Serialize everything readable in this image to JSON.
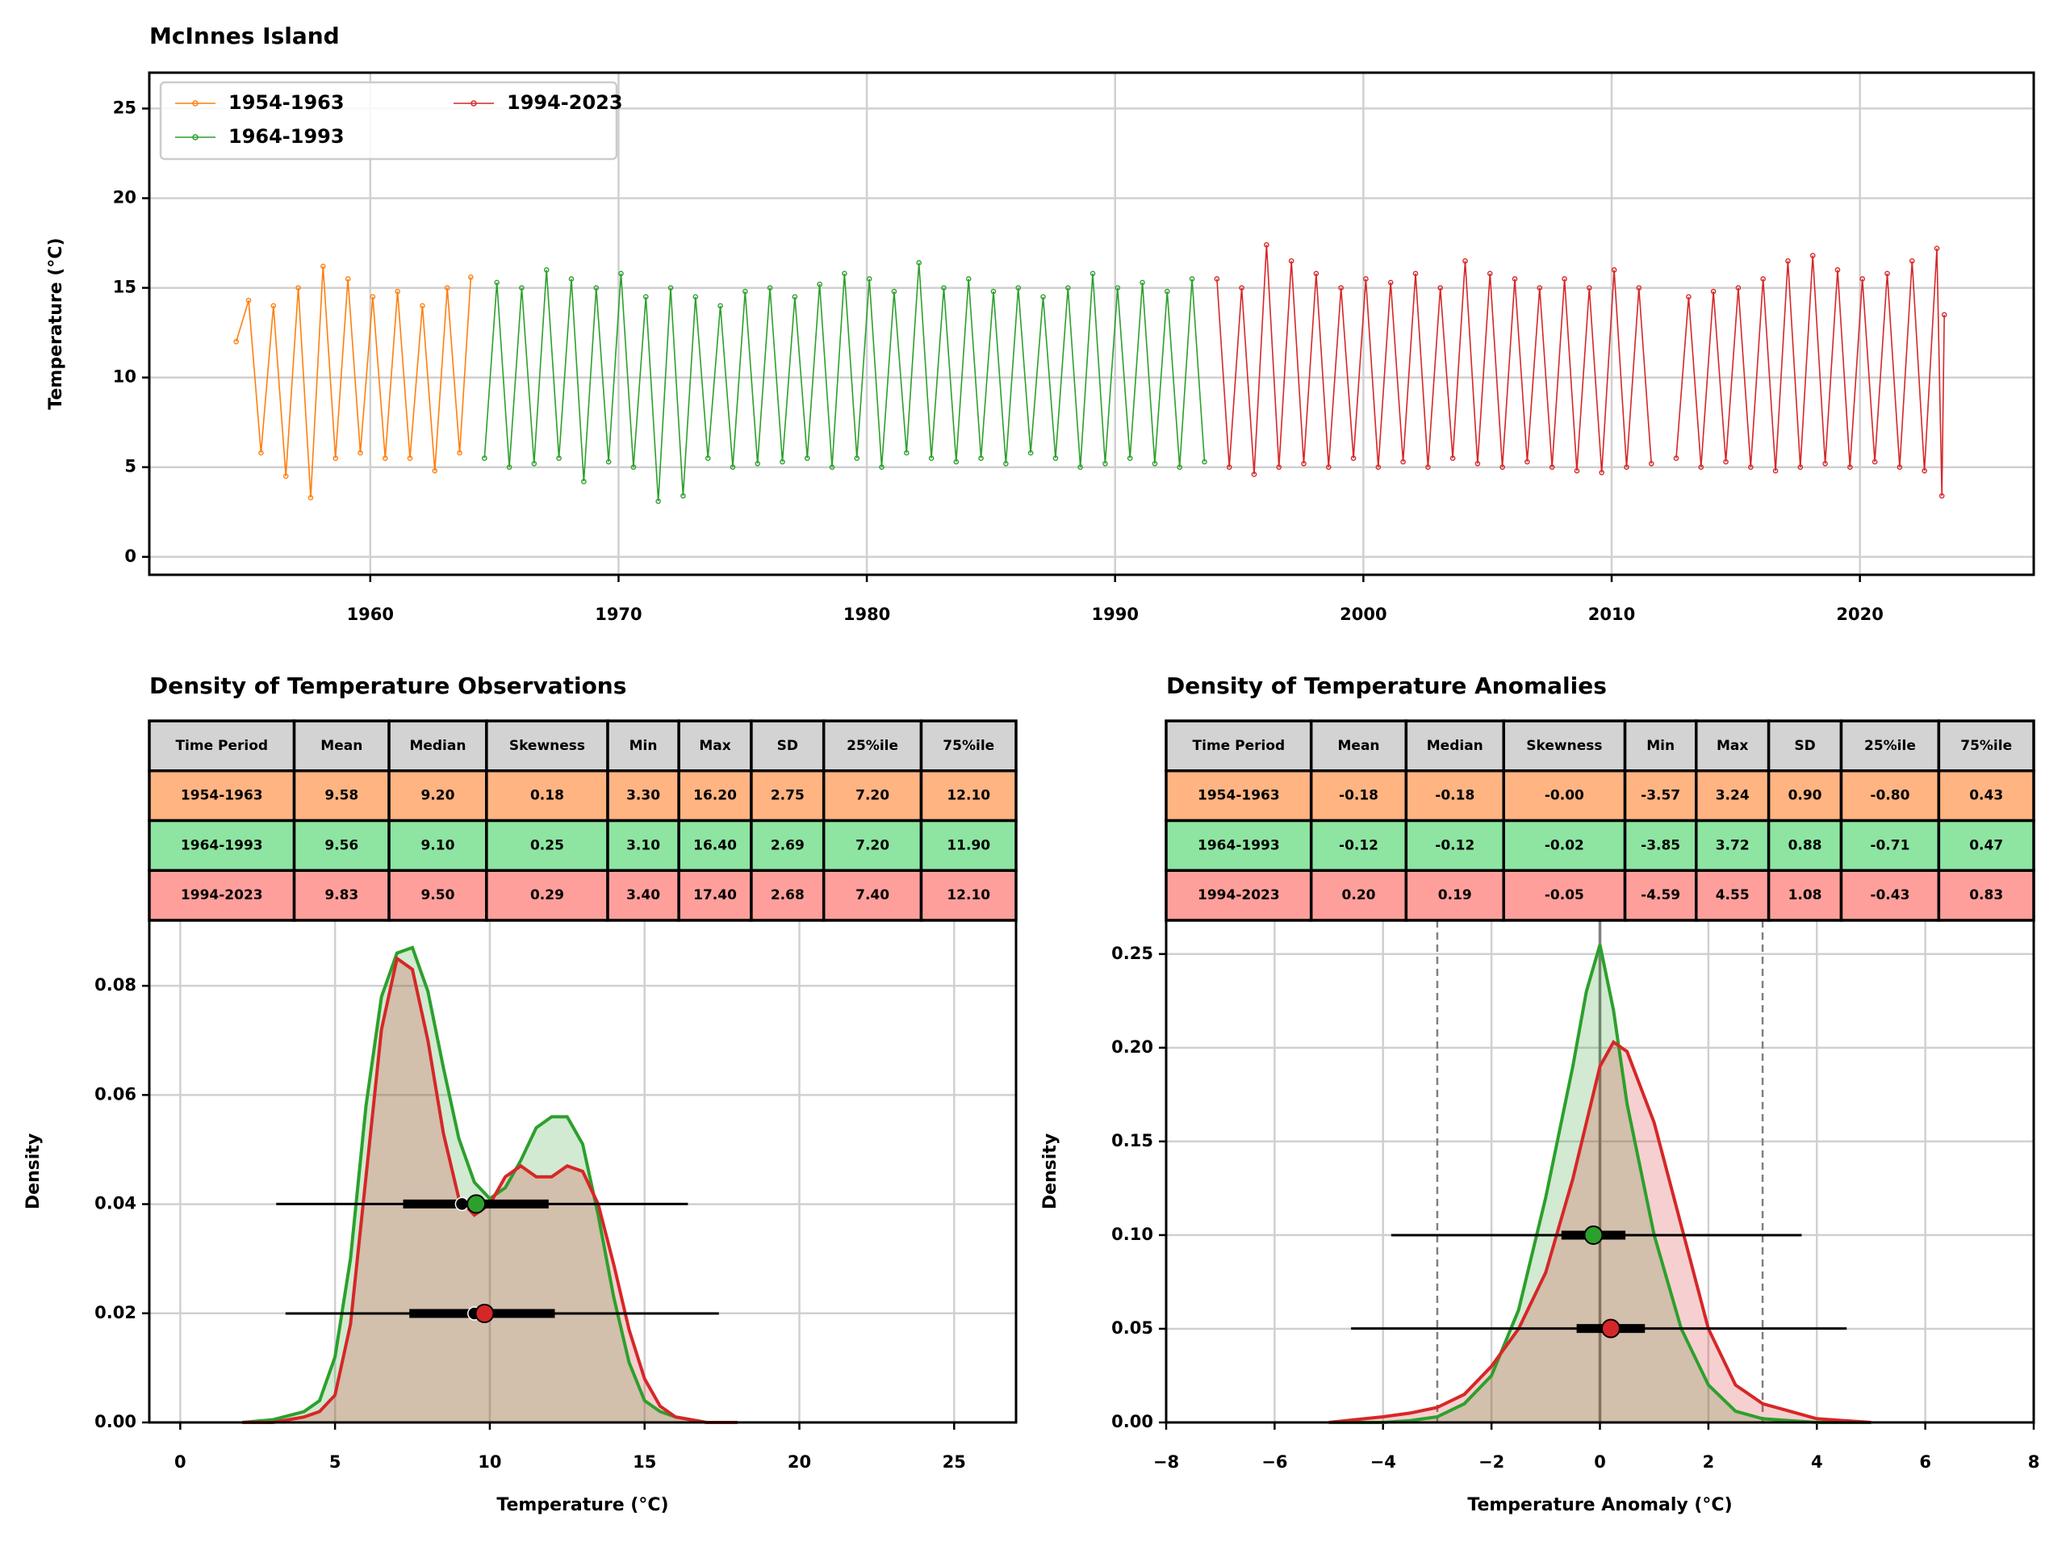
{
  "chart_data": [
    {
      "type": "line",
      "title": "McInnes Island",
      "ylabel": "Temperature (°C)",
      "xlim": [
        1951.1,
        2027
      ],
      "xticks": [
        1960,
        1970,
        1980,
        1990,
        2000,
        2010,
        2020
      ],
      "ylim": [
        -1,
        27
      ],
      "yticks": [
        0,
        5,
        10,
        15,
        20,
        25
      ],
      "grid": true,
      "legend": "upper left",
      "legend_columns": 2,
      "series": [
        {
          "name": "1954-1963",
          "color": "#ff7f0e",
          "x": [
            1954.6,
            1955.1,
            1955.6,
            1956.1,
            1956.6,
            1957.1,
            1957.6,
            1958.1,
            1958.6,
            1959.1,
            1959.6,
            1960.1,
            1960.6,
            1961.1,
            1961.6,
            1962.1,
            1962.6,
            1963.1,
            1963.6,
            1964.05
          ],
          "values": [
            12.0,
            14.3,
            5.8,
            14.0,
            4.5,
            15.0,
            3.3,
            16.2,
            5.5,
            15.5,
            5.8,
            14.5,
            5.5,
            14.8,
            5.5,
            14.0,
            4.8,
            15.0,
            5.8,
            15.6
          ]
        },
        {
          "name": "1964-1993",
          "color": "#2ca02c",
          "x": [
            1964.6,
            1965.1,
            1965.6,
            1966.1,
            1966.6,
            1967.1,
            1967.6,
            1968.1,
            1968.6,
            1969.1,
            1969.6,
            1970.1,
            1970.6,
            1971.1,
            1971.6,
            1972.1,
            1972.6,
            1973.1,
            1973.6,
            1974.1,
            1974.6,
            1975.1,
            1975.6,
            1976.1,
            1976.6,
            1977.1,
            1977.6,
            1978.1,
            1978.6,
            1979.1,
            1979.6,
            1980.1,
            1980.6,
            1981.1,
            1981.6,
            1982.1,
            1982.6,
            1983.1,
            1983.6,
            1984.1,
            1984.6,
            1985.1,
            1985.6,
            1986.1,
            1986.6,
            1987.1,
            1987.6,
            1988.1,
            1988.6,
            1989.1,
            1989.6,
            1990.1,
            1990.6,
            1991.1,
            1991.6,
            1992.1,
            1992.6,
            1993.1,
            1993.6
          ],
          "values": [
            5.5,
            15.3,
            5.0,
            15.0,
            5.2,
            16.0,
            5.5,
            15.5,
            4.2,
            15.0,
            5.3,
            15.8,
            5.0,
            14.5,
            3.1,
            15.0,
            3.4,
            14.5,
            5.5,
            14.0,
            5.0,
            14.8,
            5.2,
            15.0,
            5.3,
            14.5,
            5.5,
            15.2,
            5.0,
            15.8,
            5.5,
            15.5,
            5.0,
            14.8,
            5.8,
            16.4,
            5.5,
            15.0,
            5.3,
            15.5,
            5.5,
            14.8,
            5.2,
            15.0,
            5.8,
            14.5,
            5.5,
            15.0,
            5.0,
            15.8,
            5.2,
            15.0,
            5.5,
            15.3,
            5.2,
            14.8,
            5.0,
            15.5,
            5.3
          ]
        },
        {
          "name": "1994-2023",
          "color": "#d62728",
          "x": [
            1994.1,
            1994.6,
            1995.1,
            1995.6,
            1996.1,
            1996.6,
            1997.1,
            1997.6,
            1998.1,
            1998.6,
            1999.1,
            1999.6,
            2000.1,
            2000.6,
            2001.1,
            2001.6,
            2002.1,
            2002.6,
            2003.1,
            2003.6,
            2004.1,
            2004.6,
            2005.1,
            2005.6,
            2006.1,
            2006.6,
            2007.1,
            2007.6,
            2008.1,
            2008.6,
            2009.1,
            2009.6,
            2010.1,
            2010.6,
            2011.1,
            2011.6,
            2012.0,
            2012.6,
            2013.1,
            2013.6,
            2014.1,
            2014.6,
            2015.1,
            2015.6,
            2016.1,
            2016.6,
            2017.1,
            2017.6,
            2018.1,
            2018.6,
            2019.1,
            2019.6,
            2020.1,
            2020.6,
            2021.1,
            2021.6,
            2022.1,
            2022.6,
            2023.1,
            2023.3,
            2023.4
          ],
          "values": [
            15.5,
            5.0,
            15.0,
            4.6,
            17.4,
            5.0,
            16.5,
            5.2,
            15.8,
            5.0,
            15.0,
            5.5,
            15.5,
            5.0,
            15.3,
            5.3,
            15.8,
            5.0,
            15.0,
            5.5,
            16.5,
            5.2,
            15.8,
            5.0,
            15.5,
            5.3,
            15.0,
            5.0,
            15.5,
            4.8,
            15.0,
            4.7,
            16.0,
            5.0,
            15.0,
            5.2,
            null,
            5.5,
            14.5,
            5.0,
            14.8,
            5.3,
            15.0,
            5.0,
            15.5,
            4.8,
            16.5,
            5.0,
            16.8,
            5.2,
            16.0,
            5.0,
            15.5,
            5.3,
            15.8,
            5.0,
            16.5,
            4.8,
            17.2,
            3.4,
            13.5
          ]
        }
      ]
    },
    {
      "type": "density",
      "title": "Density of Temperature Observations",
      "xlabel": "Temperature (°C)",
      "ylabel": "Density",
      "xlim": [
        -1,
        27
      ],
      "xticks": [
        0,
        5,
        10,
        15,
        20,
        25
      ],
      "ylim": [
        0,
        0.092
      ],
      "yticks": [
        {
          "value": 0,
          "label": "0.00"
        },
        {
          "value": 0.02,
          "label": "0.02"
        },
        {
          "value": 0.04,
          "label": "0.04"
        },
        {
          "value": 0.06,
          "label": "0.06"
        },
        {
          "value": 0.08,
          "label": "0.08"
        }
      ],
      "grid": true,
      "fill_opacity": 0.22,
      "x": [
        2,
        3,
        4,
        4.5,
        5,
        5.5,
        6,
        6.5,
        7,
        7.5,
        8,
        8.5,
        9,
        9.5,
        10,
        10.5,
        11,
        11.5,
        12,
        12.5,
        13,
        13.5,
        14,
        14.5,
        15,
        15.5,
        16,
        17,
        18
      ],
      "series": [
        {
          "color": "#2ca02c",
          "values": [
            0,
            0.0005,
            0.002,
            0.004,
            0.012,
            0.03,
            0.058,
            0.078,
            0.086,
            0.087,
            0.079,
            0.065,
            0.052,
            0.044,
            0.041,
            0.043,
            0.048,
            0.054,
            0.056,
            0.056,
            0.051,
            0.038,
            0.023,
            0.011,
            0.004,
            0.002,
            0.001,
            0,
            0
          ]
        },
        {
          "color": "#d62728",
          "values": [
            0,
            0,
            0.001,
            0.002,
            0.005,
            0.018,
            0.045,
            0.072,
            0.085,
            0.083,
            0.07,
            0.053,
            0.041,
            0.038,
            0.04,
            0.045,
            0.047,
            0.045,
            0.045,
            0.047,
            0.046,
            0.04,
            0.029,
            0.017,
            0.008,
            0.003,
            0.001,
            0,
            0
          ]
        }
      ],
      "table": {
        "columns": [
          "Time Period",
          "Mean",
          "Median",
          "Skewness",
          "Min",
          "Max",
          "SD",
          "25%ile",
          "75%ile"
        ],
        "header_color": "#d3d3d3",
        "row_colors": [
          "#ffb482",
          "#8de5a1",
          "#ff9f9b"
        ],
        "rows": [
          [
            "1954-1963",
            "9.58",
            "9.20",
            "0.18",
            "3.30",
            "16.20",
            "2.75",
            "7.20",
            "12.10"
          ],
          [
            "1964-1993",
            "9.56",
            "9.10",
            "0.25",
            "3.10",
            "16.40",
            "2.69",
            "7.20",
            "11.90"
          ],
          [
            "1994-2023",
            "9.83",
            "9.50",
            "0.29",
            "3.40",
            "17.40",
            "2.68",
            "7.40",
            "12.10"
          ]
        ]
      }
    },
    {
      "type": "density",
      "title": "Density of Temperature Anomalies",
      "xlabel": "Temperature Anomaly (°C)",
      "ylabel": "Density",
      "xlim": [
        -8,
        8
      ],
      "xticks": [
        {
          "value": -8,
          "label": "−8"
        },
        {
          "value": -6,
          "label": "−6"
        },
        {
          "value": -4,
          "label": "−4"
        },
        {
          "value": -2,
          "label": "−2"
        },
        0,
        2,
        4,
        6,
        8
      ],
      "ylim": [
        0,
        0.268
      ],
      "yticks": [
        {
          "value": 0,
          "label": "0.00"
        },
        {
          "value": 0.05,
          "label": "0.05"
        },
        {
          "value": 0.1,
          "label": "0.10"
        },
        {
          "value": 0.15,
          "label": "0.15"
        },
        {
          "value": 0.2,
          "label": "0.20"
        },
        {
          "value": 0.25,
          "label": "0.25"
        }
      ],
      "grid": true,
      "fill_opacity": 0.22,
      "reference_lines": [
        {
          "value": -3,
          "style": "dashed"
        },
        {
          "value": 0,
          "style": "solid"
        },
        {
          "value": 3,
          "style": "dashed"
        }
      ],
      "x": [
        -5,
        -4,
        -3.5,
        -3,
        -2.5,
        -2,
        -1.5,
        -1,
        -0.5,
        -0.25,
        0,
        0.25,
        0.5,
        1,
        1.5,
        2,
        2.5,
        3,
        3.5,
        4,
        5
      ],
      "series": [
        {
          "color": "#2ca02c",
          "values": [
            0,
            0,
            0.001,
            0.003,
            0.01,
            0.025,
            0.06,
            0.12,
            0.19,
            0.23,
            0.255,
            0.22,
            0.17,
            0.1,
            0.05,
            0.02,
            0.006,
            0.002,
            0.001,
            0,
            0
          ]
        },
        {
          "color": "#d62728",
          "values": [
            0,
            0.003,
            0.005,
            0.008,
            0.015,
            0.03,
            0.05,
            0.08,
            0.13,
            0.16,
            0.19,
            0.203,
            0.198,
            0.16,
            0.105,
            0.05,
            0.02,
            0.01,
            0.006,
            0.002,
            0
          ]
        }
      ],
      "table": {
        "columns": [
          "Time Period",
          "Mean",
          "Median",
          "Skewness",
          "Min",
          "Max",
          "SD",
          "25%ile",
          "75%ile"
        ],
        "header_color": "#d3d3d3",
        "row_colors": [
          "#ffb482",
          "#8de5a1",
          "#ff9f9b"
        ],
        "rows": [
          [
            "1954-1963",
            "-0.18",
            "-0.18",
            "-0.00",
            "-3.57",
            "3.24",
            "0.90",
            "-0.80",
            "0.43"
          ],
          [
            "1964-1993",
            "-0.12",
            "-0.12",
            "-0.02",
            "-3.85",
            "3.72",
            "0.88",
            "-0.71",
            "0.47"
          ],
          [
            "1994-2023",
            "0.20",
            "0.19",
            "-0.05",
            "-4.59",
            "4.55",
            "1.08",
            "-0.43",
            "0.83"
          ]
        ]
      }
    }
  ]
}
